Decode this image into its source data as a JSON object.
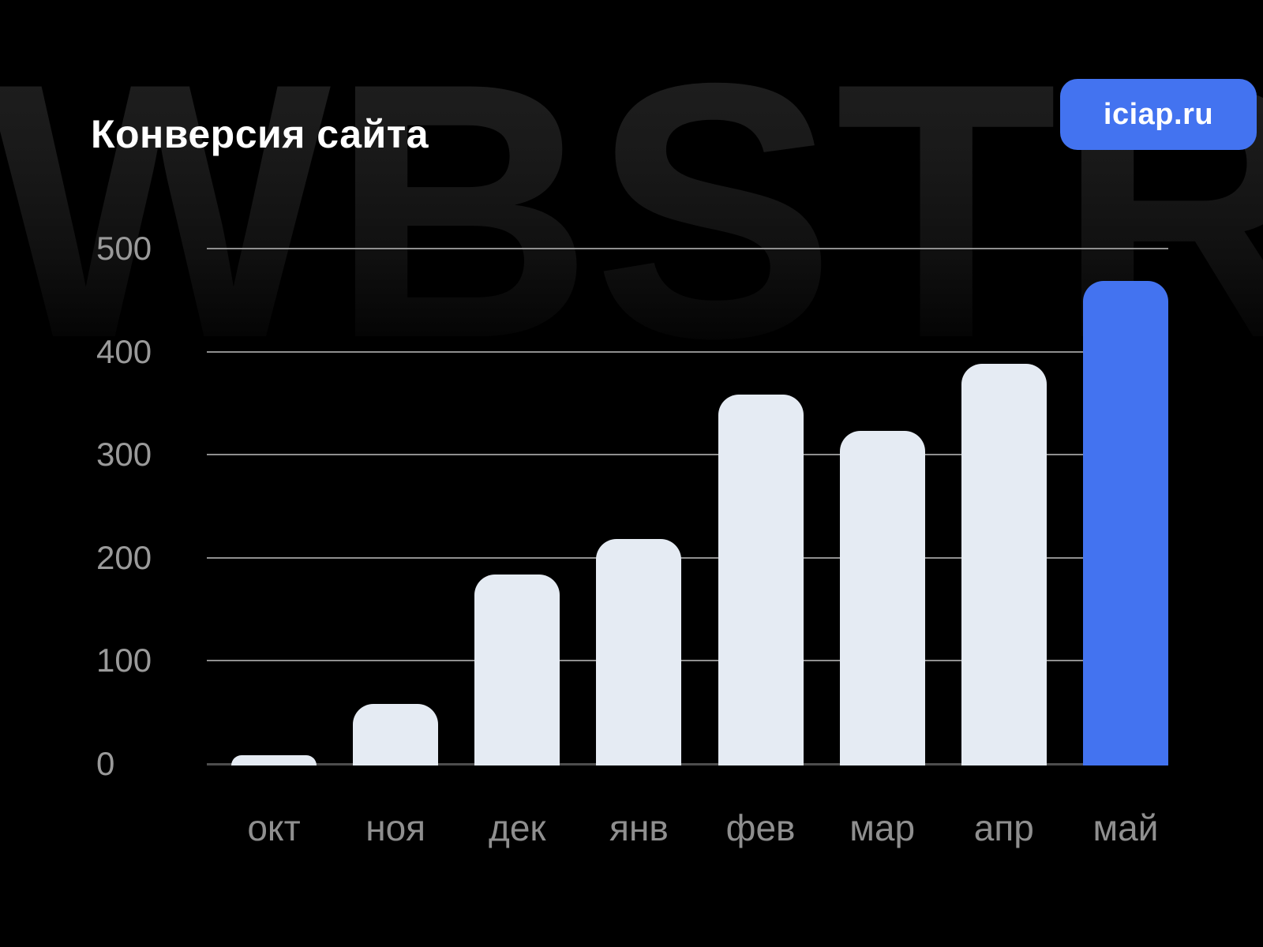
{
  "header": {
    "title": "Конверсия сайта",
    "badge_label": "iciap.ru"
  },
  "watermark_text": "WBSTR",
  "colors": {
    "background": "#000000",
    "accent_blue": "#4373F0",
    "bar_light": "#E5EBF3",
    "gridline": "#8f8f8f",
    "baseline": "#4d4d4d",
    "tick_label": "#9a9a9a",
    "month_label": "#8f8f8f",
    "title_text": "#ffffff",
    "watermark": "#1a1a1a"
  },
  "chart_data": {
    "type": "bar",
    "title": "Конверсия сайта",
    "categories": [
      "окт",
      "ноя",
      "дек",
      "янв",
      "фев",
      "мар",
      "апр",
      "май"
    ],
    "values": [
      10,
      60,
      185,
      220,
      360,
      325,
      390,
      470
    ],
    "highlight_category": "май",
    "xlabel": "",
    "ylabel": "",
    "ylim": [
      0,
      500
    ],
    "yticks": [
      0,
      100,
      200,
      300,
      400,
      500
    ],
    "grid": "horizontal",
    "legend": "none"
  }
}
